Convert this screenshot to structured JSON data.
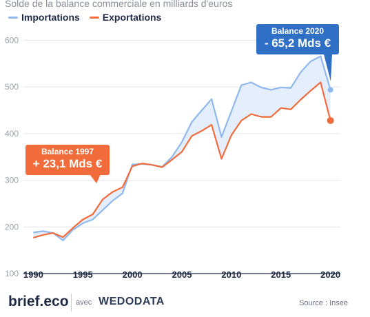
{
  "chart_data": {
    "type": "line",
    "subtitle": "Solde de la balance commerciale en milliards d'euros",
    "x": [
      1990,
      1991,
      1992,
      1993,
      1994,
      1995,
      1996,
      1997,
      1998,
      1999,
      2000,
      2001,
      2002,
      2003,
      2004,
      2005,
      2006,
      2007,
      2008,
      2009,
      2010,
      2011,
      2012,
      2013,
      2014,
      2015,
      2016,
      2017,
      2018,
      2019,
      2020
    ],
    "series": [
      {
        "name": "Importations",
        "color": "#8fb8ee",
        "values": [
          188,
          191,
          187,
          171,
          194,
          208,
          216,
          236,
          256,
          272,
          334,
          335,
          333,
          329,
          350,
          382,
          425,
          450,
          474,
          393,
          448,
          504,
          510,
          499,
          494,
          499,
          498,
          532,
          555,
          566,
          494
        ]
      },
      {
        "name": "Exportations",
        "color": "#f26b3a",
        "values": [
          177,
          183,
          187,
          178,
          198,
          216,
          227,
          259,
          275,
          285,
          330,
          336,
          333,
          328,
          344,
          361,
          395,
          406,
          419,
          346,
          397,
          428,
          442,
          436,
          436,
          455,
          452,
          473,
          492,
          510,
          428
        ]
      }
    ],
    "xticks": [
      1990,
      1995,
      2000,
      2005,
      2010,
      2015,
      2020
    ],
    "yticks": [
      100,
      200,
      300,
      400,
      500,
      600
    ],
    "ylim": [
      100,
      620
    ],
    "xlim": [
      1989,
      2021
    ],
    "fill_color": "#e4eefc",
    "annotations": [
      {
        "year": 2020,
        "line1": "Balance 2020",
        "line2": "- 65,2 Mds €",
        "color": "#2f6fc6"
      },
      {
        "year": 1997,
        "line1": "Balance 1997",
        "line2": "+ 23,1 Mds €",
        "color": "#f26b3a"
      }
    ]
  },
  "footer": {
    "logo": "brief.eco",
    "with": "avec",
    "partner": "WEDODATA",
    "source": "Source : Insee"
  }
}
